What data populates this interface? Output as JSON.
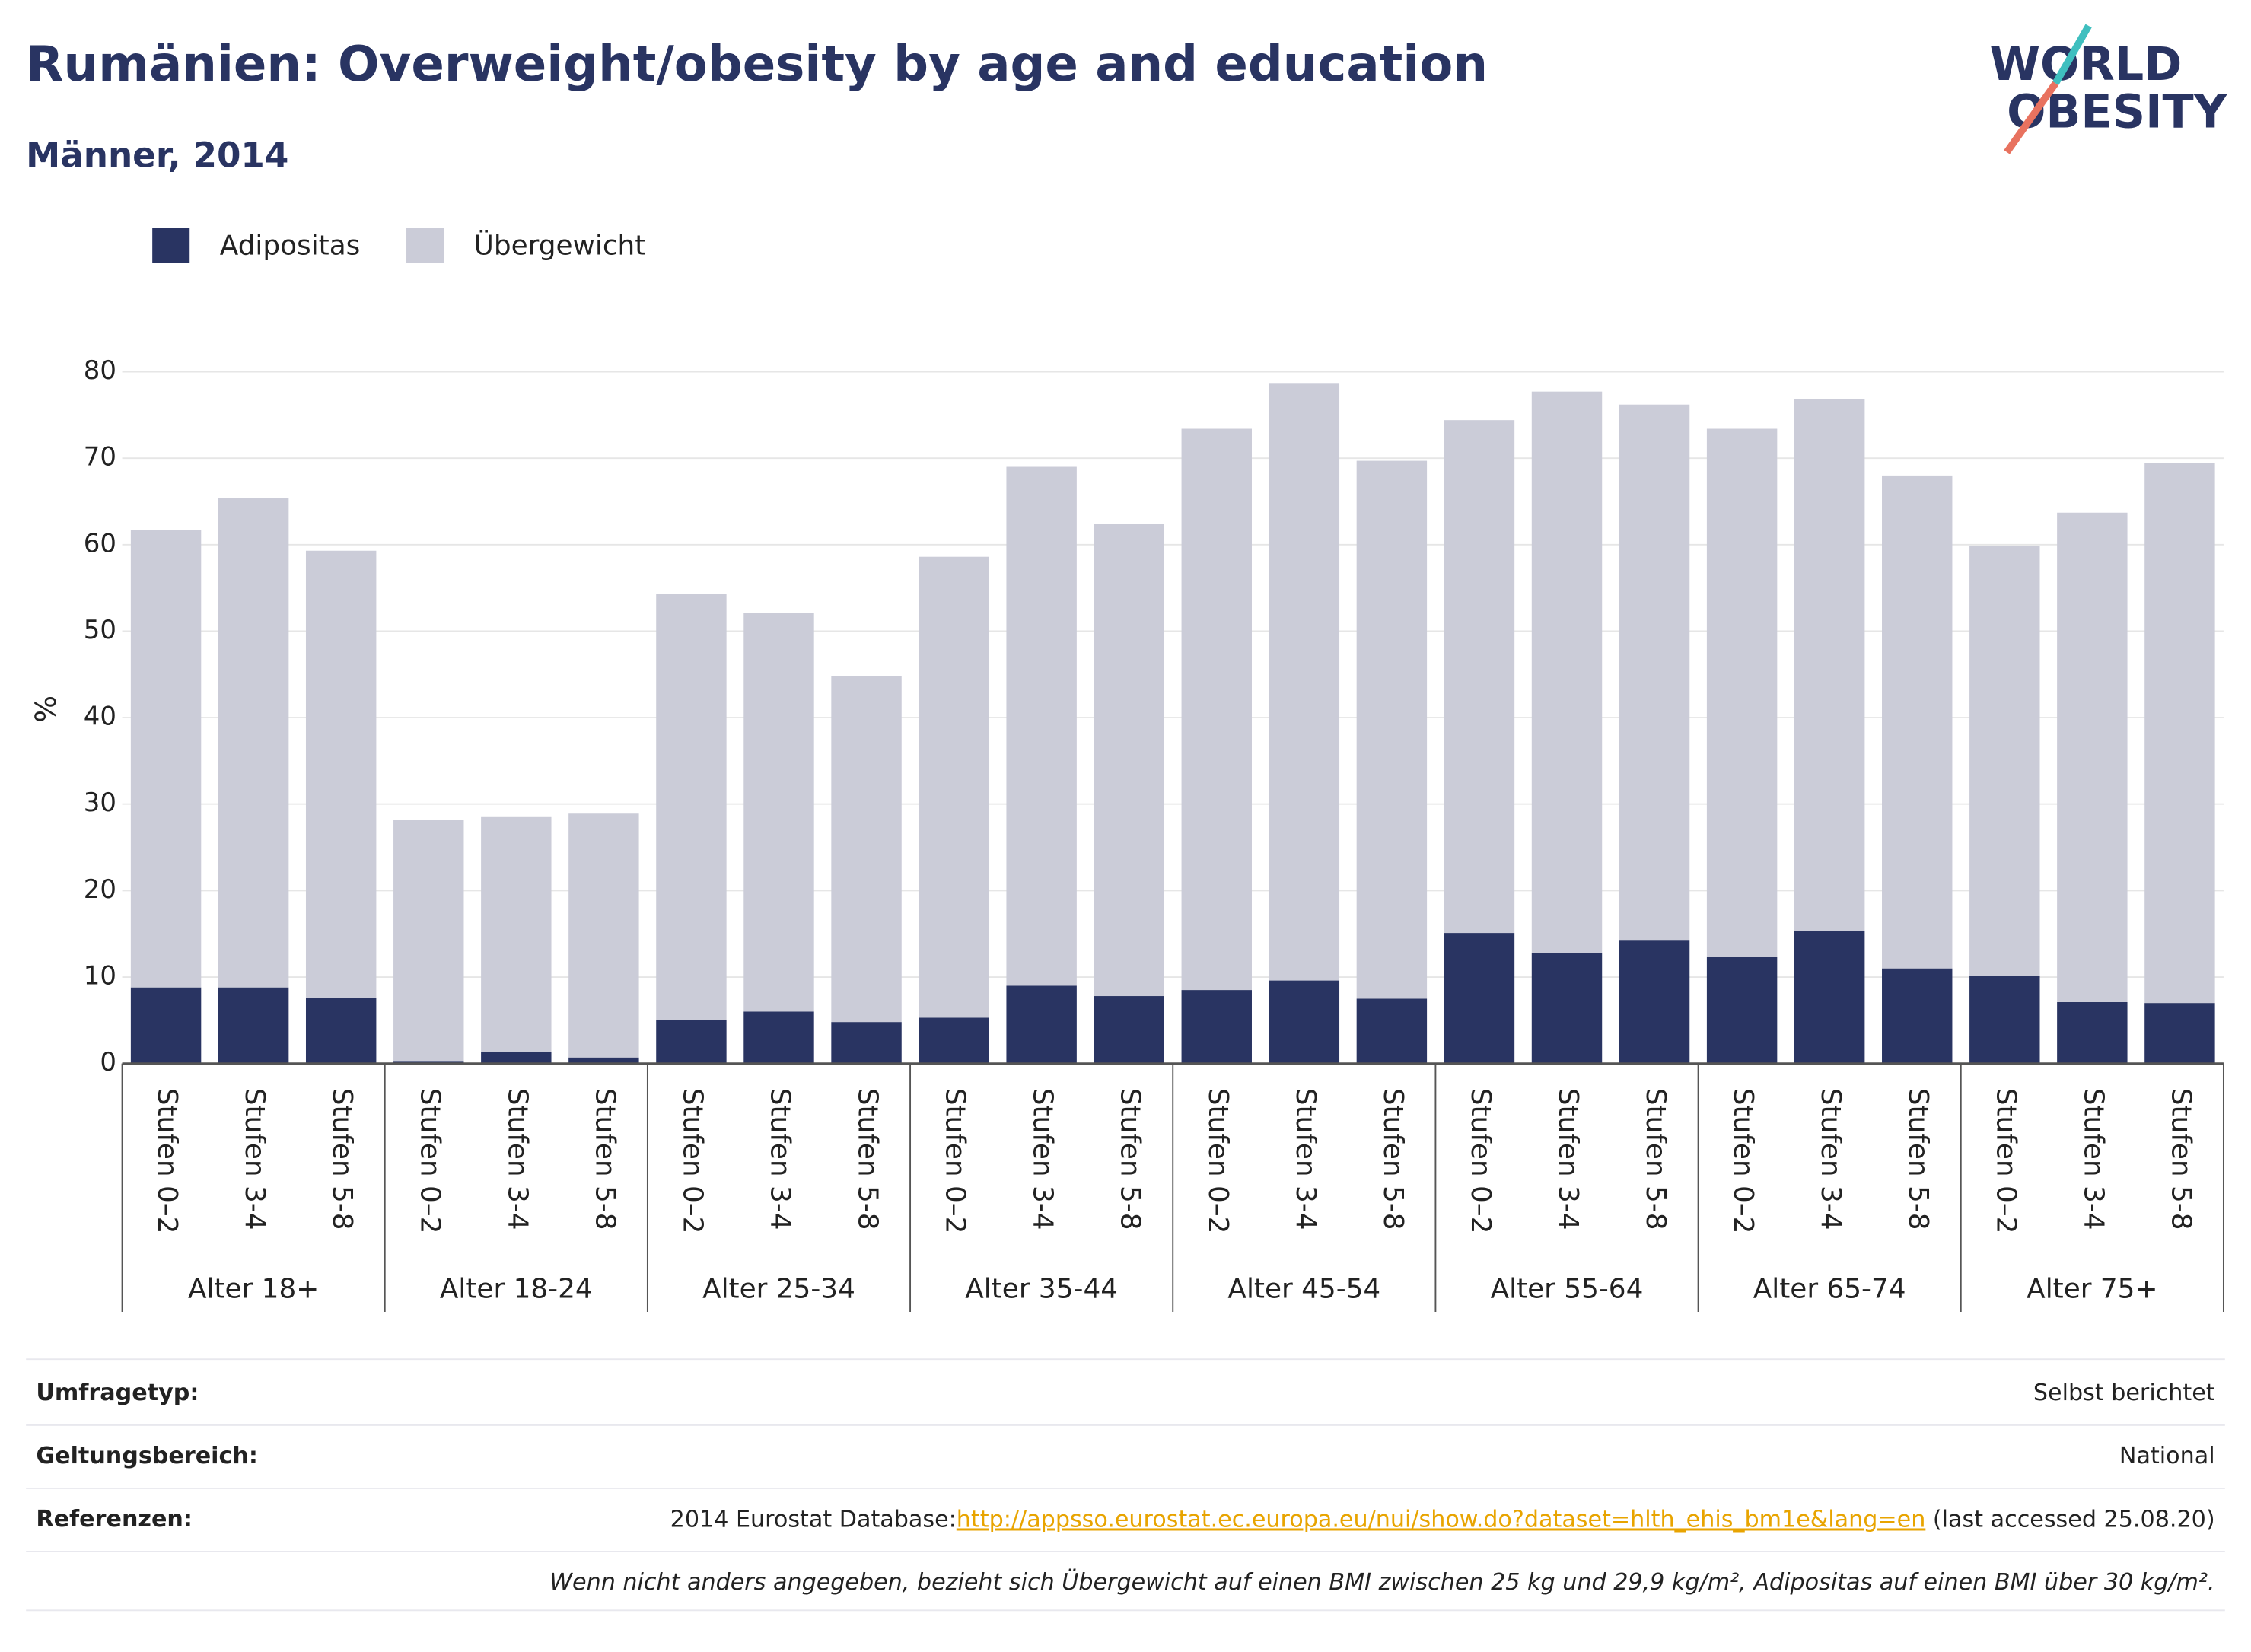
{
  "chart_data": {
    "type": "stacked_bar",
    "title": "Rumänien: Overweight/obesity by age and education",
    "subtitle": "Männer, 2014",
    "y_label": "%",
    "groups": [
      "Alter 18+",
      "Alter 18-24",
      "Alter 25-34",
      "Alter 35-44",
      "Alter 45-54",
      "Alter 55-64",
      "Alter 65-74",
      "Alter 75+"
    ],
    "categories": [
      "Stufen 0–2",
      "Stufen 3-4",
      "Stufen 5-8",
      "Stufen 0–2",
      "Stufen 3-4",
      "Stufen 5-8",
      "Stufen 0–2",
      "Stufen 3-4",
      "Stufen 5-8",
      "Stufen 0–2",
      "Stufen 3-4",
      "Stufen 5-8",
      "Stufen 0–2",
      "Stufen 3-4",
      "Stufen 5-8",
      "Stufen 0–2",
      "Stufen 3-4",
      "Stufen 5-8",
      "Stufen 0–2",
      "Stufen 3-4",
      "Stufen 5-8",
      "Stufen 0–2",
      "Stufen 3-4",
      "Stufen 5-8"
    ],
    "series": [
      {
        "name": "Adipositas",
        "color": "#293462",
        "values": [
          8.8,
          8.8,
          7.6,
          0.3,
          1.3,
          0.7,
          5.0,
          6.0,
          4.8,
          5.3,
          9.0,
          7.8,
          8.5,
          9.6,
          7.5,
          15.1,
          12.8,
          14.3,
          12.3,
          15.3,
          11.0,
          10.1,
          7.1,
          7.0
        ]
      },
      {
        "name": "Übergewicht",
        "color": "#cbccd8",
        "values": [
          52.9,
          56.6,
          51.7,
          27.9,
          27.2,
          28.2,
          49.3,
          46.1,
          40.0,
          53.3,
          60.0,
          54.6,
          64.9,
          69.1,
          62.2,
          59.3,
          64.9,
          61.9,
          61.1,
          61.5,
          57.0,
          49.8,
          56.6,
          62.4
        ]
      }
    ],
    "ylim": [
      0,
      80
    ],
    "yticks": [
      0,
      10,
      20,
      30,
      40,
      50,
      60,
      70,
      80
    ],
    "grid": true,
    "legend": "top-left"
  },
  "logo": {
    "line1": "WORLD",
    "line2": "OBESITY"
  },
  "info": {
    "rows": [
      {
        "label": "Umfragetyp:",
        "value": "Selbst berichtet"
      },
      {
        "label": "Geltungsbereich:",
        "value": "National"
      },
      {
        "label": "Referenzen:",
        "prefix": "2014 Eurostat Database:",
        "link": "http://appsso.eurostat.ec.europa.eu/nui/show.do?dataset=hlth_ehis_bm1e&lang=en",
        "suffix": " (last accessed 25.08.20)"
      }
    ],
    "note": "Wenn nicht anders angegeben, bezieht sich Übergewicht auf einen BMI zwischen 25 kg und 29,9 kg/m², Adipositas auf einen BMI über 30 kg/m²."
  }
}
